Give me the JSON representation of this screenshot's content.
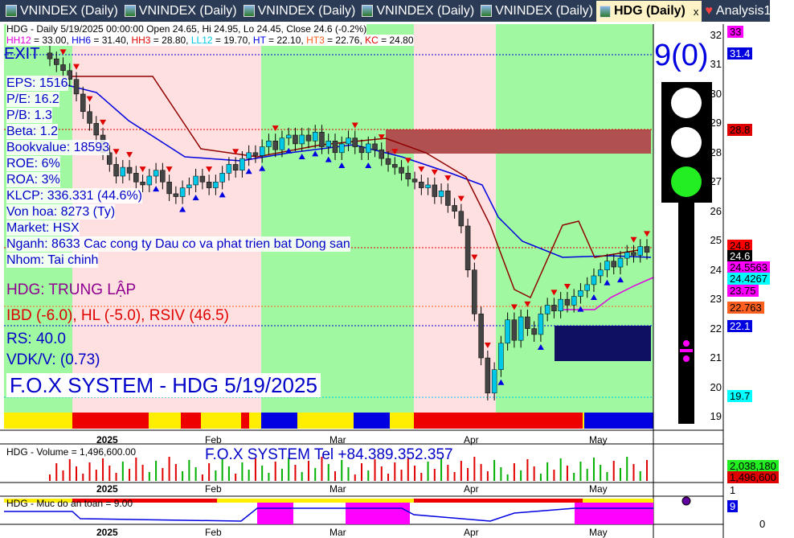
{
  "tabs": [
    {
      "label": "VNINDEX (Daily)"
    },
    {
      "label": "VNINDEX (Daily)"
    },
    {
      "label": "VNINDEX (Daily)"
    },
    {
      "label": "VNINDEX (Daily)"
    },
    {
      "label": "VNINDEX (Daily)"
    },
    {
      "label": "HDG (Daily)",
      "active": true,
      "close": "x"
    },
    {
      "label": "Analysis1"
    }
  ],
  "header": {
    "line1": "HDG - Daily 5/19/2025 00:00:00 Open 24.65, Hi 24.95, Lo 24.45, Close 24.6 (-0.2%)",
    "indicators": [
      {
        "k": "HH12",
        "v": " = 33.00, ",
        "c": "#e000e0"
      },
      {
        "k": "HH6",
        "v": " = 31.40, ",
        "c": "#0000e0"
      },
      {
        "k": "HH3",
        "v": " = 28.80, ",
        "c": "#e00000"
      },
      {
        "k": "LL12",
        "v": " = 19.70, ",
        "c": "#00c8e8"
      },
      {
        "k": "HT",
        "v": "  = 22.10, ",
        "c": "#0000e0"
      },
      {
        "k": "HT3",
        "v": "  = 22.76, ",
        "c": "#ff6020"
      },
      {
        "k": "KC",
        "v": " = 24.80",
        "c": "#e00000"
      }
    ]
  },
  "overlay": {
    "exit": "EXIT",
    "eps": "EPS: 1516",
    "pe": "P/E: 16.2",
    "pb": "P/B: 1.3",
    "beta": "Beta: 1.2",
    "bookvalue": "Bookvalue: 18593",
    "roe": "ROE: 6%",
    "roa": "ROA: 3%",
    "klcp": "KLCP: 336.331 (44.6%)",
    "vonhoa": "Von hoa: 8273 (Ty)",
    "market": "Market: HSX",
    "nganh": "Nganh: 8633 Cac cong ty Dau co va phat trien bat Dong san",
    "nhom": "Nhom: Tai chinh",
    "status": "HDG: TRUNG LẬP",
    "ibd": "IBD (-6.0), HL (-5.0), RSIV (46.5)",
    "rs": "RS: 40.0",
    "vdk": "VDK/V:  (0.73)",
    "title": "F.O.X SYSTEM - HDG 5/19/2025"
  },
  "signal": {
    "count": "9(0)",
    "lights": [
      "white",
      "white",
      "green"
    ]
  },
  "price_axis": {
    "ticks": [
      "32",
      "31",
      "30",
      "29",
      "28",
      "27",
      "26",
      "25",
      "24",
      "23",
      "22",
      "21",
      "20",
      "19"
    ]
  },
  "price_labels": [
    {
      "v": "33",
      "bg": "#ff00ff"
    },
    {
      "v": "31.4",
      "bg": "#0000e0",
      "fg": "#fff"
    },
    {
      "v": "28.8",
      "bg": "#e00000"
    },
    {
      "v": "24.8",
      "bg": "#ff0000"
    },
    {
      "v": "24.6",
      "bg": "#000",
      "fg": "#fff"
    },
    {
      "v": "24.5563",
      "bg": "#ff00ff"
    },
    {
      "v": "24.4267",
      "bg": "#00ffff"
    },
    {
      "v": "23.75",
      "bg": "#ff00ff"
    },
    {
      "v": "22.763",
      "bg": "#ff6020"
    },
    {
      "v": "22.1",
      "bg": "#0000e0",
      "fg": "#fff"
    },
    {
      "v": "19.7",
      "bg": "#00ffff"
    }
  ],
  "x_axis": [
    "2025",
    "Feb",
    "Mar",
    "Apr",
    "May"
  ],
  "volume": {
    "label": "HDG - Volume = 1,496,600.00",
    "tel": "F.O.X SYSTEM Tel +84.389.352.357",
    "avg": "2,038,180",
    "last": "1,496,600",
    "tick": "1"
  },
  "safety": {
    "label": "HDG - Muc do an toan = 9.00",
    "value": "9",
    "tick": "0"
  },
  "chart_data": {
    "type": "candlestick",
    "x_start": "2025-01-02",
    "x_end": "2025-05-19",
    "ylim": [
      19,
      32
    ],
    "closes": [
      31.2,
      31.0,
      30.8,
      30.5,
      30.0,
      29.4,
      29.0,
      28.6,
      28.0,
      27.6,
      27.2,
      27.5,
      27.3,
      27.0,
      26.9,
      27.2,
      27.4,
      27.0,
      26.6,
      26.5,
      26.8,
      26.9,
      27.2,
      27.0,
      26.8,
      27.0,
      27.3,
      27.6,
      27.4,
      27.8,
      28.0,
      27.9,
      28.2,
      28.4,
      28.1,
      28.5,
      28.6,
      28.3,
      28.6,
      28.4,
      28.7,
      28.2,
      28.4,
      28.0,
      28.3,
      28.5,
      28.2,
      28.0,
      28.3,
      28.1,
      27.8,
      27.6,
      27.5,
      27.3,
      27.1,
      27.0,
      26.8,
      26.9,
      26.5,
      26.7,
      26.2,
      26.0,
      25.5,
      24.0,
      22.5,
      21.0,
      19.8,
      20.6,
      21.5,
      22.3,
      21.6,
      22.4,
      22.0,
      21.8,
      22.5,
      22.8,
      22.6,
      23.0,
      22.8,
      23.1,
      23.3,
      23.5,
      23.8,
      24.0,
      24.3,
      24.1,
      24.4,
      24.6,
      24.5,
      24.8,
      24.6
    ]
  }
}
